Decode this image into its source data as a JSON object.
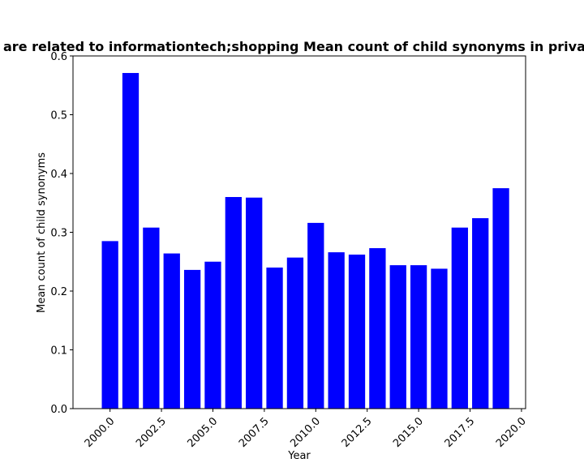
{
  "chart_data": {
    "type": "bar",
    "title": "are related to informationtech;shopping Mean count of child synonyms in priva",
    "xlabel": "Year",
    "ylabel": "Mean count of child synonyms",
    "bar_color": "#0000ff",
    "xlim": [
      1998.2,
      2020.2
    ],
    "ylim": [
      0,
      0.6
    ],
    "x": [
      2000,
      2001,
      2002,
      2003,
      2004,
      2005,
      2006,
      2007,
      2008,
      2009,
      2010,
      2011,
      2012,
      2013,
      2014,
      2015,
      2016,
      2017,
      2018,
      2019
    ],
    "values": [
      0.285,
      0.571,
      0.308,
      0.264,
      0.236,
      0.25,
      0.36,
      0.359,
      0.24,
      0.257,
      0.316,
      0.266,
      0.262,
      0.273,
      0.244,
      0.244,
      0.238,
      0.308,
      0.324,
      0.375
    ],
    "x_ticks": [
      "2000.0",
      "2002.5",
      "2005.0",
      "2007.5",
      "2010.0",
      "2012.5",
      "2015.0",
      "2017.5",
      "2020.0"
    ],
    "y_ticks": [
      "0.0",
      "0.1",
      "0.2",
      "0.3",
      "0.4",
      "0.5",
      "0.6"
    ],
    "grid": false,
    "legend": false
  }
}
